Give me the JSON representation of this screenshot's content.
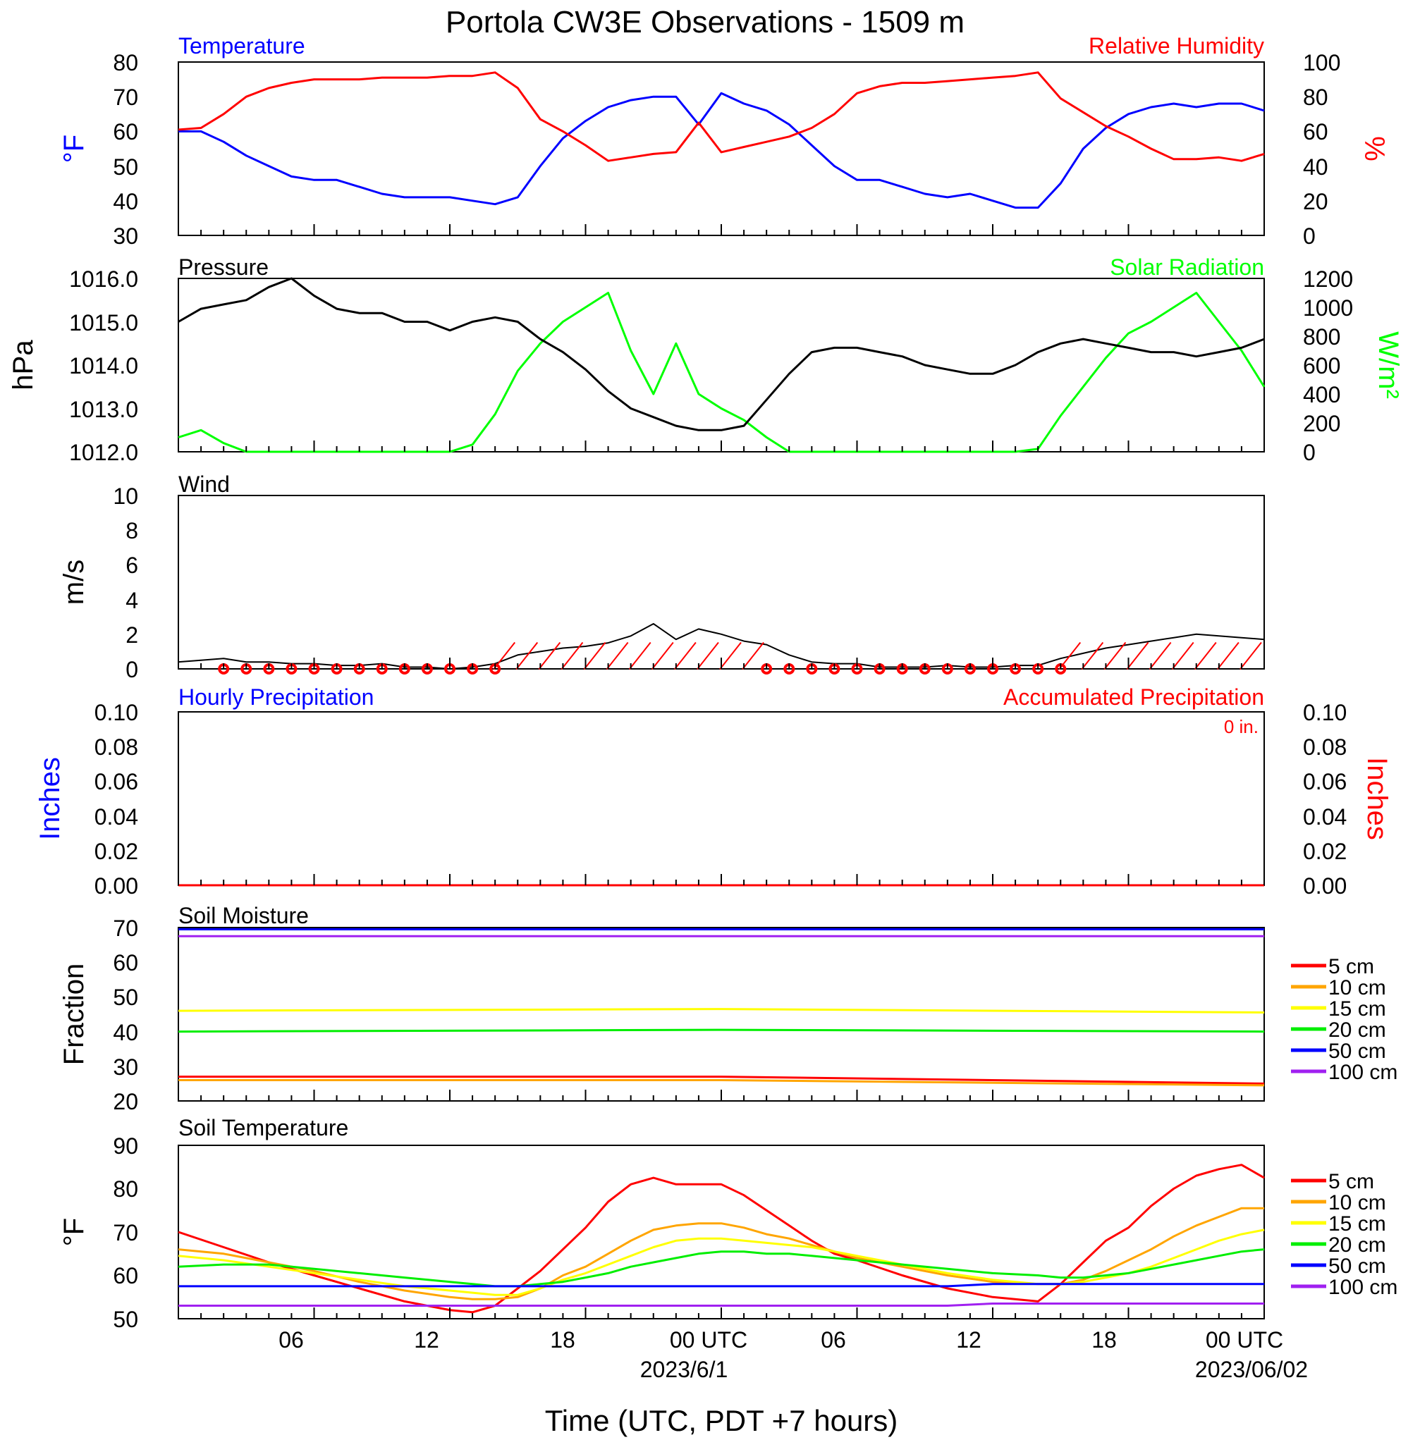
{
  "title": "Portola CW3E Observations - 1509 m",
  "xlabel": "Time (UTC, PDT +7 hours)",
  "x_ticks": [
    "06",
    "12",
    "18",
    "00 UTC",
    "06",
    "12",
    "18",
    "00 UTC"
  ],
  "x_dates": [
    "2023/6/1",
    "2023/06/02"
  ],
  "colors": {
    "temperature": "#0000ff",
    "humidity": "#ff0000",
    "pressure": "#000000",
    "solar": "#00ff00",
    "wind": "#000000",
    "wind_barb": "#ff0000",
    "precip_hourly": "#0000ff",
    "precip_accum": "#ff0000"
  },
  "panels": {
    "temp": {
      "left_title": "Temperature",
      "right_title": "Relative Humidity",
      "left_unit": "°F",
      "right_unit": "%",
      "left_ticks": [
        "80",
        "70",
        "60",
        "50",
        "40",
        "30"
      ],
      "right_ticks": [
        "100",
        "80",
        "60",
        "40",
        "20",
        "0"
      ]
    },
    "pressure": {
      "left_title": "Pressure",
      "right_title": "Solar Radiation",
      "left_unit": "hPa",
      "right_unit": "W/m²",
      "left_ticks": [
        "1016.0",
        "1015.0",
        "1014.0",
        "1013.0",
        "1012.0"
      ],
      "right_ticks": [
        "1200",
        "1000",
        "800",
        "600",
        "400",
        "200",
        "0"
      ]
    },
    "wind": {
      "left_title": "Wind",
      "left_unit": "m/s",
      "left_ticks": [
        "10",
        "8",
        "6",
        "4",
        "2",
        "0"
      ]
    },
    "precip": {
      "left_title": "Hourly Precipitation",
      "right_title": "Accumulated Precipitation",
      "left_unit": "Inches",
      "right_unit": "Inches",
      "accum_label": "0 in.",
      "left_ticks": [
        "0.10",
        "0.08",
        "0.06",
        "0.04",
        "0.02",
        "0.00"
      ],
      "right_ticks": [
        "0.10",
        "0.08",
        "0.06",
        "0.04",
        "0.02",
        "0.00"
      ]
    },
    "soil_moisture": {
      "left_title": "Soil Moisture",
      "left_unit": "Fraction",
      "left_ticks": [
        "70",
        "60",
        "50",
        "40",
        "30",
        "20"
      ]
    },
    "soil_temp": {
      "left_title": "Soil Temperature",
      "left_unit": "°F",
      "left_ticks": [
        "90",
        "80",
        "70",
        "60",
        "50"
      ]
    }
  },
  "legend": {
    "labels": [
      "5 cm",
      "10 cm",
      "15 cm",
      "20 cm",
      "50 cm",
      "100 cm"
    ],
    "colors": [
      "#ff0000",
      "#ffa500",
      "#ffff00",
      "#00ee00",
      "#0000ff",
      "#a020f0"
    ]
  },
  "chart_data": [
    {
      "type": "line",
      "title": "Temperature / Relative Humidity",
      "x_hours": [
        1,
        2,
        3,
        4,
        5,
        6,
        7,
        8,
        9,
        10,
        11,
        12,
        13,
        14,
        15,
        16,
        17,
        18,
        19,
        20,
        21,
        22,
        23,
        24,
        25,
        26,
        27,
        28,
        29,
        30,
        31,
        32,
        33,
        34,
        35,
        36,
        37,
        38,
        39,
        40,
        41,
        42,
        43,
        44,
        45,
        46,
        47,
        48,
        49
      ],
      "ylim_left": [
        30,
        80
      ],
      "ylim_right": [
        0,
        100
      ],
      "series": [
        {
          "name": "Temperature",
          "axis": "left",
          "values": [
            60,
            60,
            57,
            53,
            50,
            47,
            46,
            46,
            44,
            42,
            41,
            41,
            41,
            40,
            39,
            41,
            50,
            58,
            63,
            67,
            69,
            70,
            70,
            62,
            71,
            68,
            66,
            62,
            56,
            50,
            46,
            46,
            44,
            42,
            41,
            42,
            40,
            38,
            38,
            45,
            55,
            61,
            65,
            67,
            68,
            67,
            68,
            68,
            66
          ]
        },
        {
          "name": "Relative Humidity",
          "axis": "right",
          "values": [
            61,
            62,
            70,
            80,
            85,
            88,
            90,
            90,
            90,
            91,
            91,
            91,
            92,
            92,
            94,
            85,
            67,
            60,
            52,
            43,
            45,
            47,
            48,
            65,
            48,
            51,
            54,
            57,
            62,
            70,
            82,
            86,
            88,
            88,
            89,
            90,
            91,
            92,
            94,
            79,
            71,
            63,
            57,
            50,
            44,
            44,
            45,
            43,
            47
          ]
        }
      ]
    },
    {
      "type": "line",
      "title": "Pressure / Solar Radiation",
      "x_hours": [
        1,
        2,
        3,
        4,
        5,
        6,
        7,
        8,
        9,
        10,
        11,
        12,
        13,
        14,
        15,
        16,
        17,
        18,
        19,
        20,
        21,
        22,
        23,
        24,
        25,
        26,
        27,
        28,
        29,
        30,
        31,
        32,
        33,
        34,
        35,
        36,
        37,
        38,
        39,
        40,
        41,
        42,
        43,
        44,
        45,
        46,
        47,
        48,
        49
      ],
      "ylim_left": [
        1012.0,
        1016.0
      ],
      "ylim_right": [
        0,
        1200
      ],
      "series": [
        {
          "name": "Pressure",
          "axis": "left",
          "values": [
            1015.0,
            1015.3,
            1015.4,
            1015.5,
            1015.8,
            1016.0,
            1015.6,
            1015.3,
            1015.2,
            1015.2,
            1015.0,
            1015.0,
            1014.8,
            1015.0,
            1015.1,
            1015.0,
            1014.6,
            1014.3,
            1013.9,
            1013.4,
            1013.0,
            1012.8,
            1012.6,
            1012.5,
            1012.5,
            1012.6,
            1013.2,
            1013.8,
            1014.3,
            1014.4,
            1014.4,
            1014.3,
            1014.2,
            1014.0,
            1013.9,
            1013.8,
            1013.8,
            1014.0,
            1014.3,
            1014.5,
            1014.6,
            1014.5,
            1014.4,
            1014.3,
            1014.3,
            1014.2,
            1014.3,
            1014.4,
            1014.6
          ]
        },
        {
          "name": "Solar Radiation",
          "axis": "right",
          "values": [
            100,
            150,
            60,
            0,
            0,
            0,
            0,
            0,
            0,
            0,
            0,
            0,
            0,
            50,
            260,
            560,
            750,
            900,
            1000,
            1100,
            700,
            400,
            750,
            400,
            300,
            220,
            100,
            0,
            0,
            0,
            0,
            0,
            0,
            0,
            0,
            0,
            0,
            0,
            20,
            250,
            450,
            650,
            820,
            900,
            1000,
            1100,
            900,
            700,
            450
          ]
        }
      ]
    },
    {
      "type": "line",
      "title": "Wind",
      "x_hours": [
        1,
        2,
        3,
        4,
        5,
        6,
        7,
        8,
        9,
        10,
        11,
        12,
        13,
        14,
        15,
        16,
        17,
        18,
        19,
        20,
        21,
        22,
        23,
        24,
        25,
        26,
        27,
        28,
        29,
        30,
        31,
        32,
        33,
        34,
        35,
        36,
        37,
        38,
        39,
        40,
        41,
        42,
        43,
        44,
        45,
        46,
        47,
        48,
        49
      ],
      "ylim": [
        0,
        10
      ],
      "series": [
        {
          "name": "Wind",
          "values": [
            0.4,
            0.5,
            0.6,
            0.4,
            0.4,
            0.3,
            0.3,
            0.2,
            0.2,
            0.3,
            0.1,
            0.1,
            0.0,
            0.1,
            0.3,
            0.8,
            1.0,
            1.2,
            1.3,
            1.5,
            1.9,
            2.6,
            1.7,
            2.3,
            2.0,
            1.6,
            1.4,
            0.8,
            0.4,
            0.3,
            0.3,
            0.1,
            0.1,
            0.1,
            0.2,
            0.1,
            0.1,
            0.2,
            0.2,
            0.6,
            0.9,
            1.2,
            1.4,
            1.6,
            1.8,
            2.0,
            1.9,
            1.8,
            1.7
          ]
        }
      ]
    },
    {
      "type": "line",
      "title": "Precipitation",
      "x_hours": [
        1,
        49
      ],
      "ylim": [
        0,
        0.1
      ],
      "series": [
        {
          "name": "Hourly Precipitation",
          "values": [
            0,
            0
          ]
        },
        {
          "name": "Accumulated Precipitation",
          "values": [
            0,
            0
          ]
        }
      ]
    },
    {
      "type": "line",
      "title": "Soil Moisture",
      "x_hours": [
        1,
        25,
        49
      ],
      "ylim": [
        20,
        70
      ],
      "series": [
        {
          "name": "5 cm",
          "values": [
            27,
            27,
            25
          ]
        },
        {
          "name": "10 cm",
          "values": [
            26,
            26,
            24.5
          ]
        },
        {
          "name": "15 cm",
          "values": [
            46,
            46.5,
            45.5
          ]
        },
        {
          "name": "20 cm",
          "values": [
            40,
            40.5,
            40
          ]
        },
        {
          "name": "50 cm",
          "values": [
            69.5,
            69.5,
            69.5
          ]
        },
        {
          "name": "100 cm",
          "values": [
            67.5,
            67.5,
            67.5
          ]
        }
      ]
    },
    {
      "type": "line",
      "title": "Soil Temperature",
      "x_hours": [
        1,
        3,
        5,
        7,
        9,
        11,
        13,
        14,
        15,
        16,
        17,
        18,
        19,
        20,
        21,
        22,
        23,
        24,
        25,
        26,
        27,
        28,
        29,
        30,
        31,
        33,
        35,
        37,
        39,
        40,
        41,
        42,
        43,
        44,
        45,
        46,
        47,
        48,
        49
      ],
      "ylim": [
        50,
        90
      ],
      "series": [
        {
          "name": "5 cm",
          "values": [
            70,
            66.5,
            63,
            60,
            57,
            54,
            52,
            51.5,
            53,
            57,
            61,
            66,
            71,
            77,
            81,
            82.5,
            81,
            81,
            81,
            78.5,
            75,
            71.5,
            68,
            65,
            63.5,
            60,
            57,
            55,
            54,
            58,
            63,
            68,
            71,
            76,
            80,
            83,
            84.5,
            85.5,
            82.5
          ]
        },
        {
          "name": "10 cm",
          "values": [
            66,
            65,
            63,
            61,
            58.5,
            56.5,
            55,
            54.5,
            54.5,
            55,
            57,
            60,
            62,
            65,
            68,
            70.5,
            71.5,
            72,
            72,
            71,
            69.5,
            68.5,
            67,
            65.5,
            64,
            62,
            60,
            58.5,
            58,
            58,
            59,
            61,
            63.5,
            66,
            69,
            71.5,
            73.5,
            75.5,
            75.5
          ]
        },
        {
          "name": "15 cm",
          "values": [
            64.5,
            63.5,
            62,
            60.5,
            59,
            57.5,
            56.5,
            56,
            55.5,
            55.5,
            57,
            59,
            60.5,
            62.5,
            64.5,
            66.5,
            68,
            68.5,
            68.5,
            68,
            67.5,
            67,
            66.5,
            65.5,
            64.5,
            62.5,
            60.5,
            59,
            58,
            58,
            58.5,
            59.5,
            60.5,
            62,
            64,
            66,
            68,
            69.5,
            70.5
          ]
        },
        {
          "name": "20 cm",
          "values": [
            62,
            62.5,
            62.5,
            61.5,
            60.5,
            59.5,
            58.5,
            58,
            57.5,
            57.5,
            58,
            58.5,
            59.5,
            60.5,
            62,
            63,
            64,
            65,
            65.5,
            65.5,
            65,
            65,
            64.5,
            64,
            63.5,
            62.5,
            61.5,
            60.5,
            60,
            59.5,
            59.5,
            60,
            60.5,
            61.5,
            62.5,
            63.5,
            64.5,
            65.5,
            66
          ]
        },
        {
          "name": "50 cm",
          "values": [
            57.5,
            57.5,
            57.5,
            57.5,
            57.5,
            57.5,
            57.5,
            57.5,
            57.5,
            57.5,
            57.5,
            57.5,
            57.5,
            57.5,
            57.5,
            57.5,
            57.5,
            57.5,
            57.5,
            57.5,
            57.5,
            57.5,
            57.5,
            57.5,
            57.5,
            57.5,
            57.5,
            58,
            58,
            58,
            58,
            58,
            58,
            58,
            58,
            58,
            58,
            58,
            58
          ]
        },
        {
          "name": "100 cm",
          "values": [
            53,
            53,
            53,
            53,
            53,
            53,
            53,
            53,
            53,
            53,
            53,
            53,
            53,
            53,
            53,
            53,
            53,
            53,
            53,
            53,
            53,
            53,
            53,
            53,
            53,
            53,
            53,
            53.5,
            53.5,
            53.5,
            53.5,
            53.5,
            53.5,
            53.5,
            53.5,
            53.5,
            53.5,
            53.5,
            53.5
          ]
        }
      ]
    }
  ],
  "wind_barbs": {
    "calm_hours": [
      3,
      4,
      5,
      6,
      7,
      8,
      9,
      10,
      11,
      12,
      13,
      14,
      15,
      27,
      28,
      29,
      30,
      31,
      32,
      33,
      34,
      35,
      36,
      37,
      38,
      39,
      40
    ],
    "barb_hours": [
      15.5,
      16.5,
      17.5,
      18.5,
      19.5,
      20.5,
      21.5,
      22.5,
      23.5,
      24.5,
      25.5,
      26.5,
      40.5,
      41.5,
      42.5,
      43.5,
      44.5,
      45.5,
      46.5,
      47.5,
      48.5
    ]
  }
}
